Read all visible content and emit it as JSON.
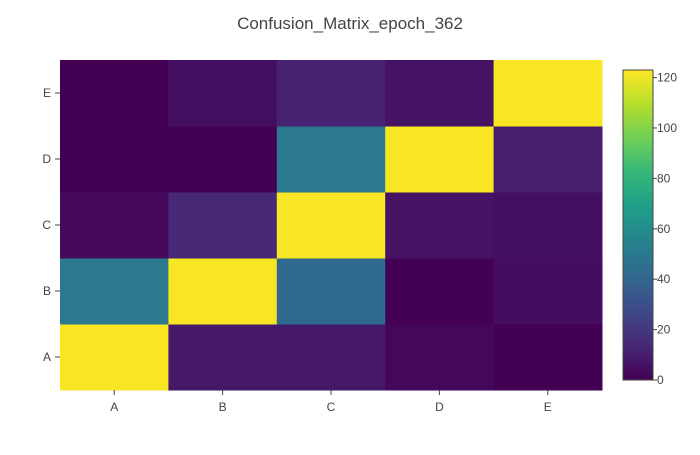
{
  "chart_data": {
    "type": "heatmap",
    "title": "Confusion_Matrix_epoch_362",
    "xlabel": "",
    "ylabel": "",
    "x": [
      "A",
      "B",
      "C",
      "D",
      "E"
    ],
    "y": [
      "A",
      "B",
      "C",
      "D",
      "E"
    ],
    "z": [
      [
        122,
        8,
        8,
        2,
        0
      ],
      [
        50,
        122,
        42,
        0,
        4
      ],
      [
        3,
        14,
        122,
        6,
        5
      ],
      [
        0,
        0,
        50,
        122,
        10
      ],
      [
        0,
        5,
        12,
        6,
        122
      ]
    ],
    "zlim": [
      0,
      123
    ],
    "colorscale": "Viridis",
    "colorbar": {
      "tickvals": [
        0,
        20,
        40,
        60,
        80,
        100,
        120
      ],
      "ticktext": [
        "0",
        "20",
        "40",
        "60",
        "80",
        "100",
        "120"
      ]
    }
  }
}
